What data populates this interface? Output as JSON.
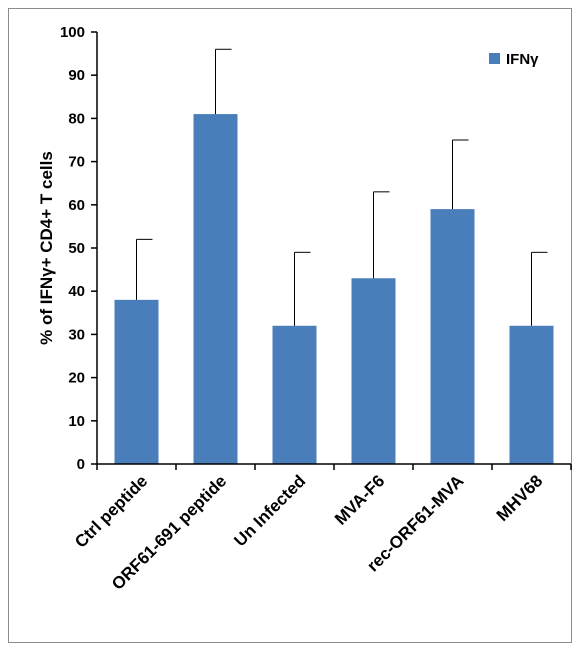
{
  "chart_data": {
    "type": "bar",
    "title": "",
    "xlabel": "",
    "ylabel": "% of IFNγ+ CD4+ T cells",
    "ylim": [
      0,
      100
    ],
    "yticks": [
      0,
      10,
      20,
      30,
      40,
      50,
      60,
      70,
      80,
      90,
      100
    ],
    "categories": [
      "Ctrl peptide",
      "ORF61-691 peptide",
      "Un Infected",
      "MVA-F6",
      "rec-ORF61-MVA",
      "MHV68"
    ],
    "series": [
      {
        "name": "IFNγ",
        "color": "#4a7ebb",
        "values": [
          38,
          81,
          32,
          43,
          59,
          32
        ],
        "error_upper": [
          14,
          15,
          17,
          20,
          16,
          17
        ]
      }
    ],
    "legend_position": "top-right",
    "grid": false
  }
}
